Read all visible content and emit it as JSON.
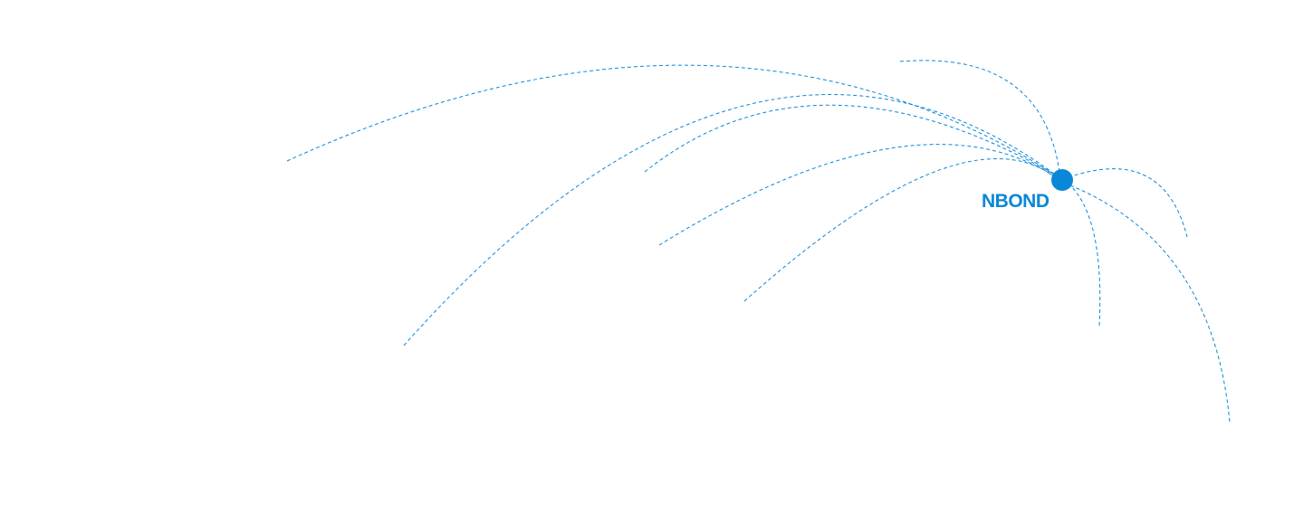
{
  "hub": {
    "label": "NBOND",
    "color": "#0a87d8"
  },
  "line_style": "dashed",
  "connections_count": 9
}
